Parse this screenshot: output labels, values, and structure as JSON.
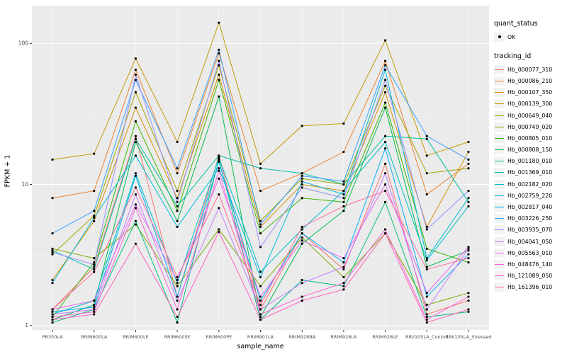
{
  "figure": {
    "panel_bg": "#EBEBEB",
    "grid_color": "#FFFFFF",
    "point_color": "#000000",
    "tick_text_color": "#4D4D4D"
  },
  "axes": {
    "x_title": "sample_name",
    "y_title": "FPKM + 1",
    "y_tick_labels": [
      "1",
      "10",
      "100"
    ],
    "y_tick_values": [
      1,
      10,
      100
    ],
    "y_minor_values": [
      3.1623,
      31.623
    ]
  },
  "legend": {
    "quant_status_title": "quant_status",
    "quant_status_item": "OK",
    "tracking_id_title": "tracking_id"
  },
  "chart_data": {
    "type": "line",
    "title": "",
    "xlabel": "sample_name",
    "ylabel": "FPKM + 1",
    "y_scale": "log10",
    "ylim": [
      0.93,
      185
    ],
    "grid": true,
    "legend_position": "right",
    "categories": [
      "PB350LA",
      "RRIM600LA",
      "RRIM600LE",
      "RRIM600SE",
      "RRIM600PE",
      "RRIM901LA",
      "RRIM928BA",
      "RRIM928LA",
      "RRIM928LE",
      "RRII105LA_Control",
      "RRII105LA_Stressed"
    ],
    "series": [
      {
        "name": "Hb_000077_310",
        "color": "#F8766D",
        "values": [
          1.3,
          2.6,
          22,
          1.6,
          16,
          1.3,
          4.5,
          2.5,
          14,
          1.2,
          1.5
        ]
      },
      {
        "name": "Hb_000086_210",
        "color": "#EA8331",
        "values": [
          8,
          9,
          65,
          12,
          85,
          9,
          12,
          17,
          75,
          8.5,
          14
        ]
      },
      {
        "name": "Hb_000107_350",
        "color": "#D89000",
        "values": [
          2.1,
          5.5,
          35,
          8,
          60,
          5,
          10,
          9,
          45,
          5,
          17
        ]
      },
      {
        "name": "Hb_000139_300",
        "color": "#C09B00",
        "values": [
          15,
          16.5,
          78,
          20,
          140,
          14,
          26,
          27,
          105,
          16,
          20
        ]
      },
      {
        "name": "Hb_000649_040",
        "color": "#A3A500",
        "values": [
          3.2,
          6,
          45,
          9,
          70,
          5.5,
          11,
          10,
          50,
          12,
          13
        ]
      },
      {
        "name": "Hb_000749_020",
        "color": "#7CAE00",
        "values": [
          3.5,
          3,
          5.2,
          1.9,
          4.8,
          1.9,
          4.2,
          2.2,
          4.5,
          1.4,
          1.7
        ]
      },
      {
        "name": "Hb_000805_010",
        "color": "#39B600",
        "values": [
          1.15,
          2.8,
          28,
          6.5,
          55,
          4.5,
          8,
          7.5,
          38,
          3.5,
          2.8
        ]
      },
      {
        "name": "Hb_000808_150",
        "color": "#00BB4E",
        "values": [
          1.1,
          1.4,
          20,
          5.5,
          42,
          1.15,
          3.8,
          6.5,
          35,
          2.6,
          3.4
        ]
      },
      {
        "name": "Hb_001180_010",
        "color": "#00BF7D",
        "values": [
          1.05,
          1.3,
          5.5,
          1.05,
          15,
          1.1,
          2.1,
          1.9,
          7.5,
          1.15,
          1.25
        ]
      },
      {
        "name": "Hb_001369_010",
        "color": "#00C1A3",
        "values": [
          3.4,
          2.5,
          21,
          7,
          16,
          13,
          12,
          10,
          22,
          21,
          7.5
        ]
      },
      {
        "name": "Hb_002182_020",
        "color": "#00BFC4",
        "values": [
          1.2,
          1.5,
          12,
          2.0,
          15.5,
          2.4,
          4.8,
          9,
          20,
          2.9,
          7
        ]
      },
      {
        "name": "Hb_002759_220",
        "color": "#00BBDA",
        "values": [
          2.0,
          5.8,
          16,
          5.0,
          13,
          2.2,
          10.5,
          8.5,
          65,
          3.0,
          8
        ]
      },
      {
        "name": "Hb_002817_040",
        "color": "#00B0F6",
        "values": [
          1.25,
          1.35,
          11.5,
          1.6,
          14.5,
          1.5,
          4.5,
          2.8,
          18,
          1.6,
          3.2
        ]
      },
      {
        "name": "Hb_003226_250",
        "color": "#35A2FF",
        "values": [
          4.5,
          6.5,
          55,
          13,
          90,
          5.2,
          11.5,
          10.5,
          70,
          22,
          15
        ]
      },
      {
        "name": "Hb_003935_070",
        "color": "#9590FF",
        "values": [
          3.3,
          2.7,
          60,
          7.5,
          75,
          3.6,
          9.5,
          8,
          55,
          4.8,
          9
        ]
      },
      {
        "name": "Hb_004041_050",
        "color": "#C77CFF",
        "values": [
          1.2,
          1.3,
          8.5,
          1.5,
          6.8,
          1.3,
          2.0,
          2.6,
          12,
          1.3,
          3.5
        ]
      },
      {
        "name": "Hb_005563_010",
        "color": "#E76BF3",
        "values": [
          1.3,
          1.5,
          7.2,
          2.1,
          11,
          1.6,
          4.0,
          3.0,
          10,
          1.7,
          3.6
        ]
      },
      {
        "name": "Hb_048476_140",
        "color": "#FA62DB",
        "values": [
          1.15,
          1.25,
          6.8,
          1.3,
          12.5,
          1.2,
          1.6,
          2.0,
          4.8,
          1.1,
          1.6
        ]
      },
      {
        "name": "Hb_121089_050",
        "color": "#FF62BC",
        "values": [
          1.1,
          1.2,
          3.8,
          1.15,
          4.6,
          1.1,
          1.5,
          1.8,
          4.5,
          1.05,
          1.3
        ]
      },
      {
        "name": "Hb_161396_010",
        "color": "#FF6A98",
        "values": [
          1.3,
          2.4,
          9.5,
          2.2,
          8.5,
          1.4,
          5.0,
          7.0,
          9.0,
          2.5,
          3.0
        ]
      }
    ]
  }
}
